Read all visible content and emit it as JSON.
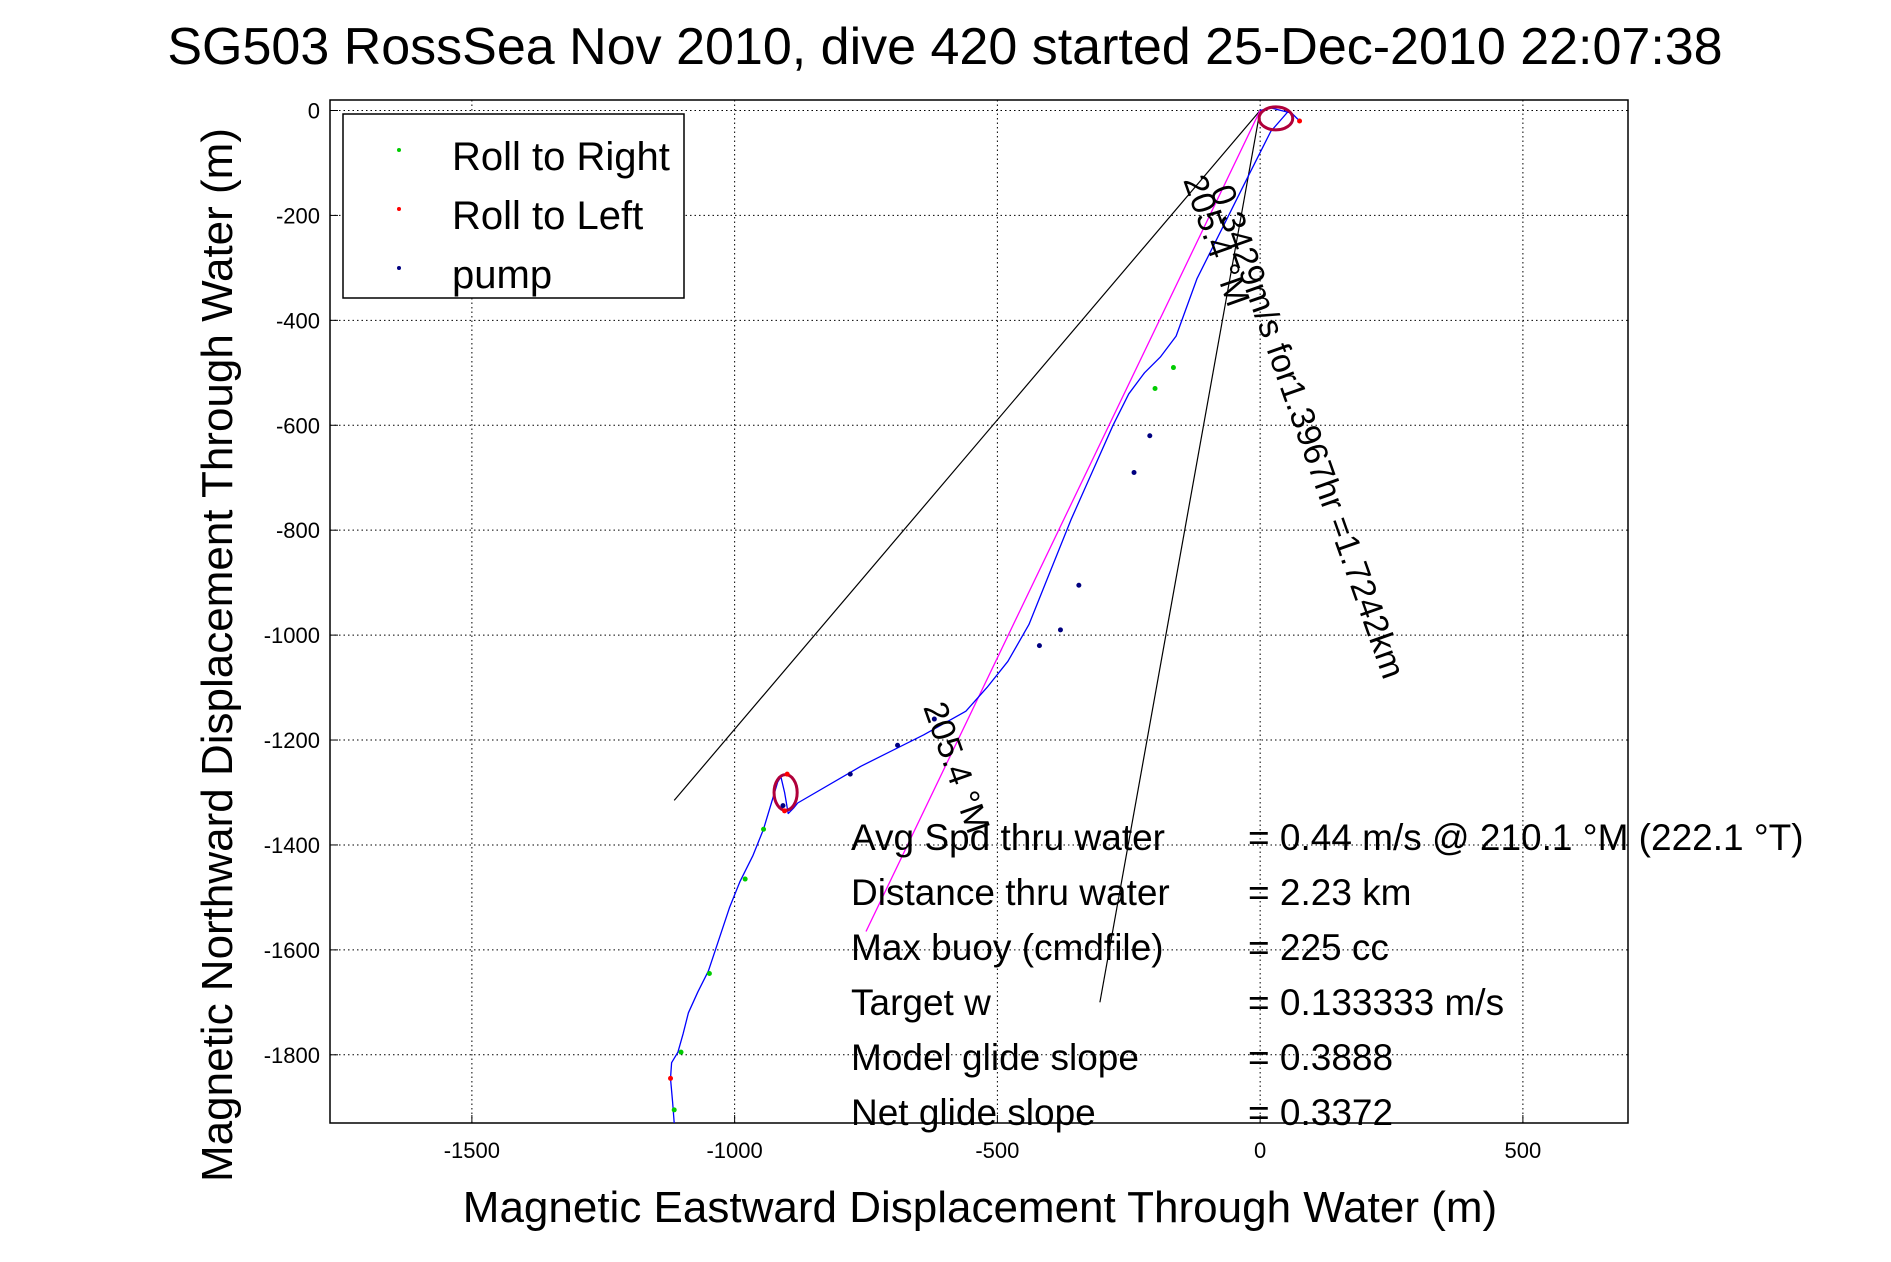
{
  "chart_data": {
    "type": "line",
    "title": "SG503 RossSea Nov 2010, dive 420 started 25-Dec-2010 22:07:38",
    "xlabel": "Magnetic Eastward Displacement Through Water (m)",
    "ylabel": "Magnetic Northward Displacement Through Water (m)",
    "xlim": [
      -1770,
      700
    ],
    "ylim": [
      -1930,
      20
    ],
    "xticks": [
      -1500,
      -1000,
      -500,
      0,
      500
    ],
    "yticks": [
      0,
      -200,
      -400,
      -600,
      -800,
      -1000,
      -1200,
      -1400,
      -1600,
      -1800
    ],
    "grid": true,
    "legend_position": "top-left",
    "legend": [
      {
        "label": "Roll to Right",
        "color": "#00cc00"
      },
      {
        "label": "Roll to Left",
        "color": "#ff0000"
      },
      {
        "label": "pump",
        "color": "#000080"
      }
    ],
    "track": {
      "name": "",
      "color": "#0000ff",
      "x": [
        -1115,
        -1118,
        -1122,
        -1120,
        -1108,
        -1098,
        -1088,
        -1070,
        -1050,
        -1030,
        -1010,
        -990,
        -965,
        -945,
        -930,
        -918,
        -912,
        -905,
        -898,
        -888,
        -880,
        -760,
        -640,
        -560,
        -520,
        -480,
        -440,
        -400,
        -360,
        -320,
        -280,
        -250,
        -220,
        -190,
        -160,
        -120,
        -70,
        -20,
        20,
        55,
        75,
        60,
        20,
        0
      ],
      "y": [
        -1930,
        -1890,
        -1845,
        -1815,
        -1795,
        -1760,
        -1720,
        -1680,
        -1640,
        -1580,
        -1520,
        -1470,
        -1420,
        -1370,
        -1320,
        -1280,
        -1270,
        -1300,
        -1340,
        -1330,
        -1320,
        -1250,
        -1190,
        -1145,
        -1100,
        -1050,
        -980,
        -880,
        -780,
        -690,
        -600,
        -540,
        -500,
        -470,
        -430,
        -320,
        -220,
        -120,
        -40,
        0,
        -20,
        -5,
        5,
        0
      ]
    },
    "roll_right_points": {
      "x": [
        -1115,
        -1102,
        -1048,
        -980,
        -945,
        -165,
        -200
      ],
      "y": [
        -1905,
        -1795,
        -1645,
        -1465,
        -1370,
        -490,
        -530
      ]
    },
    "roll_left_points": {
      "x": [
        -1122,
        -900,
        -905,
        75
      ],
      "y": [
        -1845,
        -1265,
        -1335,
        -20
      ]
    },
    "pump_points": {
      "x": [
        -908,
        -780,
        -690,
        -620,
        -420,
        -380,
        -345,
        -240,
        -210
      ],
      "y": [
        -1325,
        -1265,
        -1210,
        -1160,
        -1020,
        -990,
        -905,
        -690,
        -620
      ]
    },
    "heading_line": {
      "color": "#ff00ff",
      "x": [
        0,
        -750
      ],
      "y": [
        0,
        -1565
      ]
    },
    "wedge_lines": [
      {
        "x": [
          0,
          -1115
        ],
        "y": [
          0,
          -1315
        ]
      },
      {
        "x": [
          0,
          -305
        ],
        "y": [
          0,
          -1700
        ]
      }
    ],
    "annotations": [
      "0.3429m/s for1.3967hr =1.7242km",
      "205.4 °M",
      "205.4 °M"
    ],
    "stats": [
      {
        "label": "Avg Spd thru water",
        "value": "=  0.44 m/s @ 210.1 °M (222.1 °T)"
      },
      {
        "label": "Distance thru water",
        "value": "=  2.23 km"
      },
      {
        "label": "Max buoy (cmdfile)",
        "value": "= 225 cc"
      },
      {
        "label": "Target w",
        "value": "= 0.133333 m/s"
      },
      {
        "label": "Model glide slope",
        "value": "= 0.3888"
      },
      {
        "label": "Net glide slope",
        "value": "= 0.3372"
      }
    ]
  }
}
